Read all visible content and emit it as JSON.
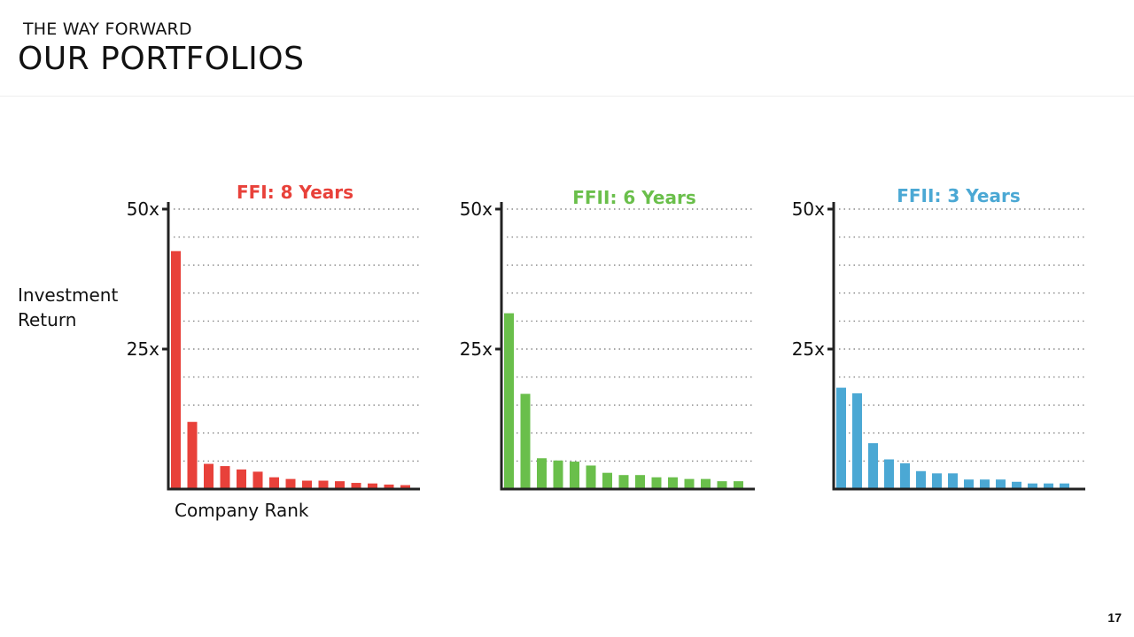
{
  "header": {
    "eyebrow": "THE WAY FORWARD",
    "title": "OUR PORTFOLIOS"
  },
  "page_number": "17",
  "chart_data": [
    {
      "type": "bar",
      "title": "FFI: 8 Years",
      "color": "#e8413a",
      "ylabel": "Investment Return",
      "xlabel": "Company Rank",
      "y_ticks": [
        {
          "value": 25,
          "label": "25x"
        },
        {
          "value": 50,
          "label": "50x"
        }
      ],
      "ylim": [
        0,
        50
      ],
      "grid": true,
      "values": [
        42.5,
        12,
        4.5,
        4.1,
        3.5,
        3.1,
        2.1,
        1.8,
        1.5,
        1.5,
        1.4,
        1.1,
        1.0,
        0.8,
        0.7
      ]
    },
    {
      "type": "bar",
      "title": "FFII: 6 Years",
      "color": "#6abf4b",
      "y_ticks": [
        {
          "value": 25,
          "label": "25x"
        },
        {
          "value": 50,
          "label": "50x"
        }
      ],
      "ylim": [
        0,
        50
      ],
      "grid": true,
      "values": [
        31.4,
        17,
        5.5,
        5.1,
        4.9,
        4.2,
        2.9,
        2.5,
        2.5,
        2.1,
        2.1,
        1.8,
        1.8,
        1.4,
        1.4
      ]
    },
    {
      "type": "bar",
      "title": "FFII: 3 Years",
      "color": "#4ba8d4",
      "y_ticks": [
        {
          "value": 25,
          "label": "25x"
        },
        {
          "value": 50,
          "label": "50x"
        }
      ],
      "ylim": [
        0,
        50
      ],
      "grid": true,
      "values": [
        18.1,
        17.1,
        8.2,
        5.3,
        4.6,
        3.2,
        2.8,
        2.8,
        1.7,
        1.7,
        1.7,
        1.3,
        1.0,
        1.0,
        1.0
      ]
    }
  ]
}
